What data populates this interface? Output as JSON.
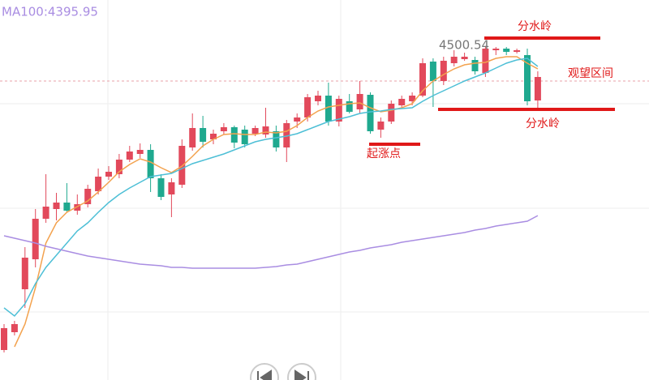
{
  "chart_data": {
    "type": "candlestick",
    "ylim": [
      4294.5,
      4529
    ],
    "yticks": [
      4336.5,
      4400.5,
      4465
    ],
    "grid": true,
    "up_color": "#e2495b",
    "down_color": "#1fa98f",
    "open": [
      4313,
      4324,
      4350.5,
      4369,
      4394,
      4400,
      4404,
      4399,
      4403,
      4411,
      4420,
      4421.5,
      4430.5,
      4434,
      4436.5,
      4419,
      4409,
      4415,
      4438,
      4450,
      4443,
      4448,
      4450.5,
      4449,
      4446.5,
      4446,
      4448,
      4438,
      4454,
      4456.5,
      4466.5,
      4470,
      4454,
      4466.5,
      4461.5,
      4470.5,
      4449,
      4454,
      4464,
      4466.5,
      4470,
      4491,
      4479,
      4490,
      4492.5,
      4492,
      4484,
      4498,
      4499,
      4497,
      4495,
      4467
    ],
    "close": [
      4326.5,
      4329,
      4370,
      4394,
      4401.5,
      4404,
      4399,
      4403,
      4412.5,
      4420,
      4423,
      4430.5,
      4435.5,
      4436.5,
      4419,
      4407.5,
      4416.5,
      4439,
      4450,
      4441.5,
      4446.5,
      4450.5,
      4441,
      4440,
      4450,
      4451,
      4438,
      4453,
      4456.5,
      4469,
      4470,
      4454,
      4468,
      4460,
      4471,
      4448,
      4454,
      4465,
      4468,
      4470,
      4490,
      4479,
      4491.5,
      4494,
      4494,
      4485,
      4499,
      4499,
      4497,
      4498,
      4466.5,
      4481.5
    ],
    "high": [
      4329,
      4331,
      4376.5,
      4400,
      4421.5,
      4410,
      4416,
      4409,
      4415,
      4425,
      4426.5,
      4434,
      4439,
      4440.5,
      4440,
      4421.5,
      4419,
      4443,
      4459,
      4457.5,
      4449,
      4453,
      4451.5,
      4451.5,
      4451.5,
      4462.5,
      4451.5,
      4455,
      4459,
      4471,
      4473,
      4478,
      4470,
      4471,
      4479,
      4472,
      4456.5,
      4467,
      4470,
      4472,
      4493,
      4493,
      4494,
      4498,
      4496.5,
      4494,
      4500.54,
      4500,
      4500,
      4499,
      4499,
      4485
    ],
    "low": [
      4311.5,
      4322,
      4339,
      4364,
      4391.5,
      4393,
      4398,
      4396.5,
      4401,
      4409,
      4418,
      4419,
      4429,
      4431.5,
      4410.5,
      4405.5,
      4395,
      4413,
      4436,
      4438,
      4440,
      4446,
      4437.5,
      4438,
      4445,
      4444,
      4435.5,
      4429,
      4450,
      4454,
      4464,
      4451.5,
      4451,
      4459,
      4459,
      4446.5,
      4444,
      4452.5,
      4462,
      4464,
      4469,
      4463,
      4476.5,
      4488,
      4491.5,
      4483,
      4481.5,
      4495,
      4495,
      4496,
      4464,
      4462
    ],
    "lines": [
      {
        "color": "#f3a24e",
        "values": [
          null,
          4315,
          4329,
          4351.5,
          4379,
          4391.5,
          4398,
          4401.5,
          4405,
          4410.5,
          4416.5,
          4423,
          4427.5,
          4431,
          4429,
          4425.5,
          4422.5,
          4426.5,
          4432.5,
          4439,
          4443,
          4446,
          4446.5,
          4446,
          4446,
          4447.5,
          4447,
          4448,
          4451.5,
          4456.5,
          4460.5,
          4463,
          4464,
          4465,
          4465.5,
          4462.5,
          4460,
          4461,
          4462.5,
          4465,
          4473,
          4479,
          4483,
          4486.5,
          4489,
          4490,
          4490.5,
          4493,
          4494,
          4494,
          4490,
          4486.5
        ]
      },
      {
        "color": "#4dbfd6",
        "values": [
          4339,
          4334,
          4341.5,
          4354,
          4364,
          4371.5,
          4379,
          4386.5,
          4391.5,
          4398,
          4404,
          4409,
          4413,
          4416.5,
          4420,
          4421,
          4422,
          4425,
          4428,
          4430,
          4432,
          4434,
          4436.5,
          4439,
          4441.5,
          4443,
          4444,
          4445,
          4446.5,
          4449,
          4451.5,
          4454,
          4455.5,
          4457,
          4459,
          4460,
          4460.5,
          4461.5,
          4462,
          4462.5,
          4466.5,
          4470,
          4473,
          4476,
          4479,
          4481.5,
          4484,
          4487,
          4490,
          4492,
          4493,
          4488
        ]
      },
      {
        "color": "#a98de2",
        "label": "MA100:4395.95",
        "values": [
          4383.5,
          4382,
          4380.5,
          4379,
          4377,
          4375.5,
          4374,
          4372.5,
          4371,
          4370,
          4369,
          4368,
          4367,
          4366,
          4365.5,
          4365,
          4364,
          4364,
          4363.5,
          4363.5,
          4363.5,
          4363.5,
          4363.5,
          4363.5,
          4363.5,
          4364,
          4364.5,
          4365.5,
          4366,
          4367.5,
          4369,
          4370.5,
          4372,
          4373.5,
          4374.5,
          4376,
          4377,
          4378,
          4379.5,
          4380.5,
          4381.5,
          4382.5,
          4383.5,
          4384.5,
          4385.5,
          4387,
          4388,
          4389.5,
          4390.5,
          4391.5,
          4392.5,
          4395.95
        ]
      }
    ],
    "high_label": "4500.54",
    "annotations": [
      {
        "text": "分水岭",
        "color": "#e01818"
      },
      {
        "text": "观望区间",
        "color": "#e01818"
      },
      {
        "text": "分水岭",
        "color": "#e01818"
      },
      {
        "text": "起涨点",
        "color": "#e01818"
      }
    ]
  }
}
